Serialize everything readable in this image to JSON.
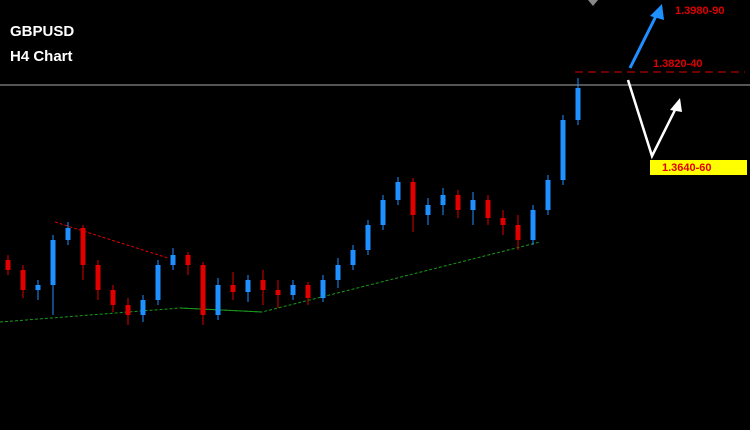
{
  "chart_data": {
    "type": "candlestick",
    "title": "GBPUSD",
    "subtitle": "H4 Chart",
    "annotations": [
      "1.3980-90",
      "1.3820-40",
      "1.3640-60"
    ],
    "up_color": "#1e90ff",
    "down_color": "#e00000",
    "ylim": [
      1.3114,
      1.3974
    ],
    "open": [
      1.3454,
      1.3434,
      1.3394,
      1.3404,
      1.3494,
      1.3518,
      1.3444,
      1.3394,
      1.3364,
      1.3344,
      1.3374,
      1.3444,
      1.3464,
      1.3444,
      1.3344,
      1.3404,
      1.339,
      1.3414,
      1.3394,
      1.3384,
      1.3404,
      1.3378,
      1.3414,
      1.3444,
      1.3474,
      1.3524,
      1.3574,
      1.361,
      1.3544,
      1.3564,
      1.3584,
      1.3554,
      1.3574,
      1.3538,
      1.3524,
      1.3494,
      1.3554,
      1.3614,
      1.3734
    ],
    "high": [
      1.3464,
      1.3444,
      1.3414,
      1.3504,
      1.353,
      1.3524,
      1.3454,
      1.3404,
      1.3378,
      1.3384,
      1.3454,
      1.3478,
      1.347,
      1.345,
      1.3418,
      1.343,
      1.3424,
      1.3434,
      1.3414,
      1.3414,
      1.341,
      1.3424,
      1.3458,
      1.3484,
      1.3534,
      1.3584,
      1.362,
      1.3618,
      1.3578,
      1.3598,
      1.3594,
      1.359,
      1.3584,
      1.3554,
      1.3544,
      1.3564,
      1.3624,
      1.3744,
      1.3818
    ],
    "low": [
      1.3424,
      1.3378,
      1.3374,
      1.3344,
      1.3484,
      1.3414,
      1.3374,
      1.335,
      1.3324,
      1.333,
      1.3364,
      1.3434,
      1.3424,
      1.3324,
      1.3334,
      1.3374,
      1.337,
      1.3364,
      1.3358,
      1.3374,
      1.3364,
      1.337,
      1.3398,
      1.3434,
      1.3464,
      1.3514,
      1.3564,
      1.351,
      1.3524,
      1.3544,
      1.3538,
      1.3524,
      1.3524,
      1.3504,
      1.3474,
      1.3484,
      1.3544,
      1.3604,
      1.3724
    ],
    "close": [
      1.3434,
      1.3394,
      1.3404,
      1.3494,
      1.3518,
      1.3444,
      1.3394,
      1.3364,
      1.3344,
      1.3374,
      1.3444,
      1.3464,
      1.3444,
      1.3344,
      1.3404,
      1.339,
      1.3414,
      1.3394,
      1.3384,
      1.3404,
      1.3378,
      1.3414,
      1.3444,
      1.3474,
      1.3524,
      1.3574,
      1.361,
      1.3544,
      1.3564,
      1.3584,
      1.3554,
      1.3574,
      1.3538,
      1.3524,
      1.3494,
      1.3554,
      1.3614,
      1.3734,
      1.3798
    ]
  }
}
